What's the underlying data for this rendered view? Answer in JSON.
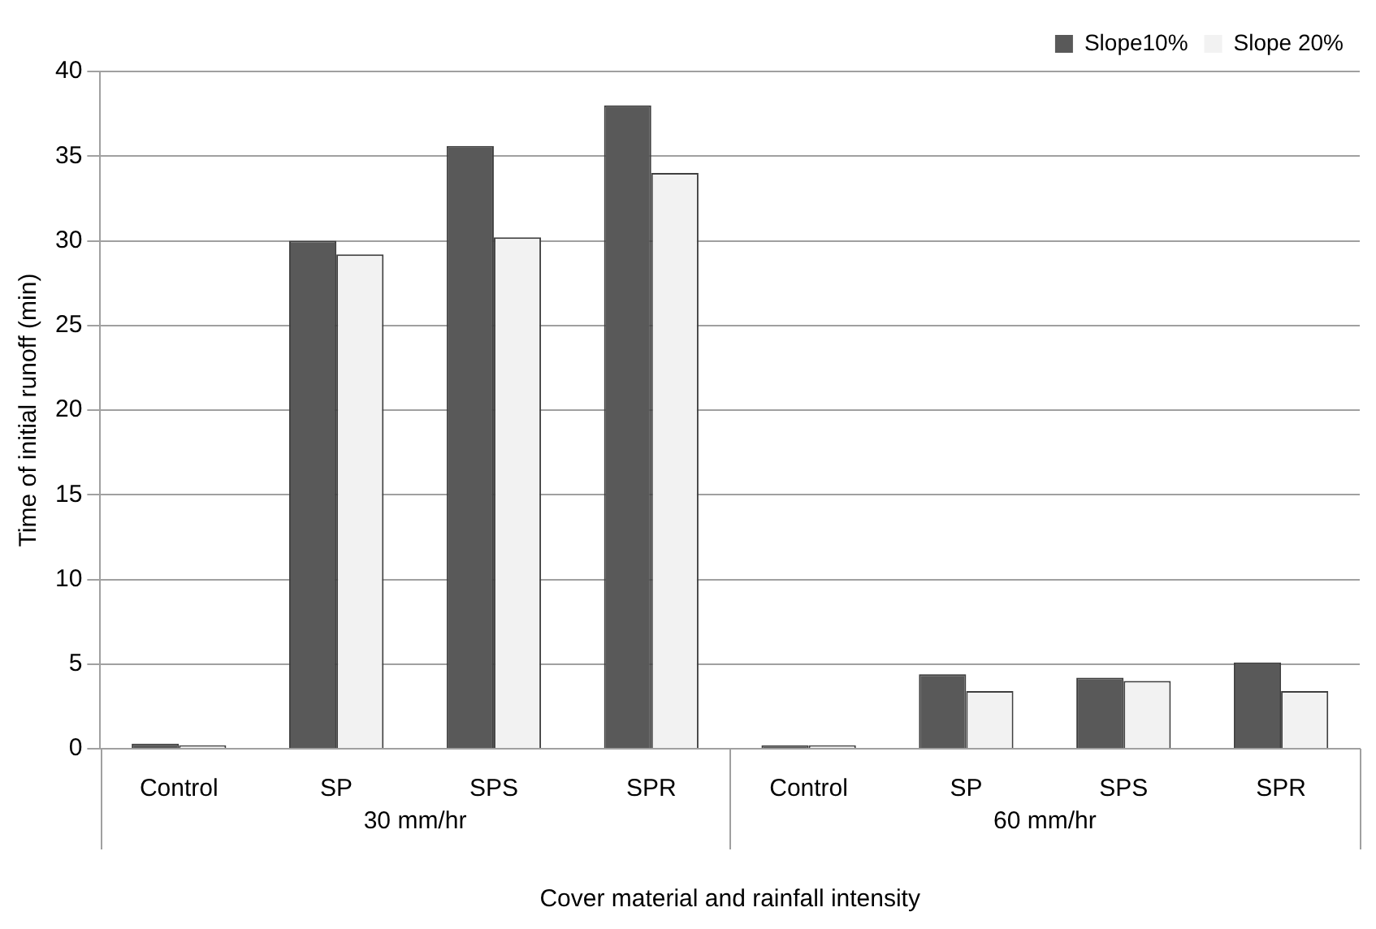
{
  "chart_data": {
    "type": "bar",
    "xlabel": "Cover material and rainfall intensity",
    "ylabel": "Time of initial runoff (min)",
    "categories": [
      "Control",
      "SP",
      "SPS",
      "SPR",
      "Control",
      "SP",
      "SPS",
      "SPR"
    ],
    "annotations": [
      "30 mm/hr",
      "60 mm/hr"
    ],
    "series": [
      {
        "name": "Slope10%",
        "color": "#595959",
        "values": [
          0.3,
          30.0,
          35.6,
          38.0,
          0.2,
          4.4,
          4.2,
          5.1
        ]
      },
      {
        "name": "Slope 20%",
        "color": "#f2f2f2",
        "values": [
          0.2,
          29.2,
          30.2,
          34.0,
          0.2,
          3.4,
          4.0,
          3.4
        ]
      }
    ],
    "ylim": [
      0,
      40
    ],
    "yticks": [
      0,
      5,
      10,
      15,
      20,
      25,
      30,
      35,
      40
    ],
    "grid": "y",
    "legend": "top right"
  }
}
